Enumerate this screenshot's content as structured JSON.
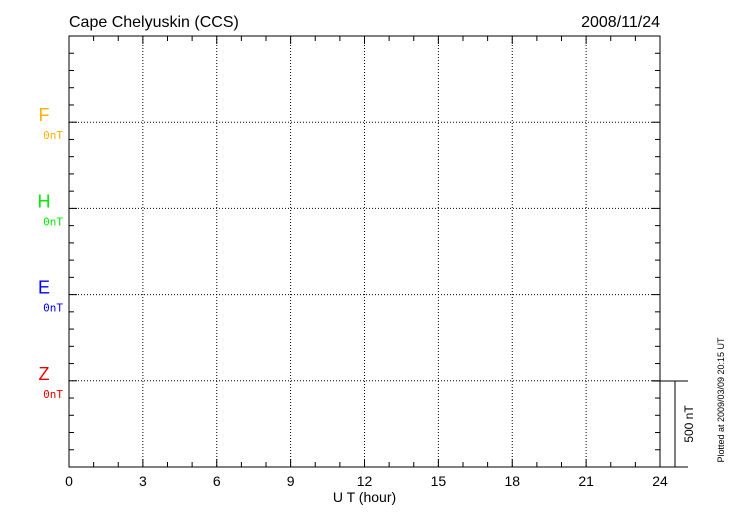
{
  "chart_data": {
    "type": "line",
    "title": "Cape Chelyuskin (CCS)",
    "date": "2008/11/24",
    "xlabel": "U T (hour)",
    "xlim": [
      0,
      24
    ],
    "x_ticks": [
      "0",
      "3",
      "6",
      "9",
      "12",
      "15",
      "18",
      "21",
      "24"
    ],
    "grid": true,
    "series": [
      {
        "name": "F",
        "baseline_label": "0nT",
        "color": "#ffb000",
        "values": []
      },
      {
        "name": "H",
        "baseline_label": "0nT",
        "color": "#00ee00",
        "values": []
      },
      {
        "name": "E",
        "baseline_label": "0nT",
        "color": "#0000ff",
        "values": []
      },
      {
        "name": "Z",
        "baseline_label": "0nT",
        "color": "#ee0000",
        "values": []
      }
    ],
    "scale_bar_label": "500 nT",
    "plotted_note": "Plotted at 2009/03/09 20:15 UT"
  }
}
